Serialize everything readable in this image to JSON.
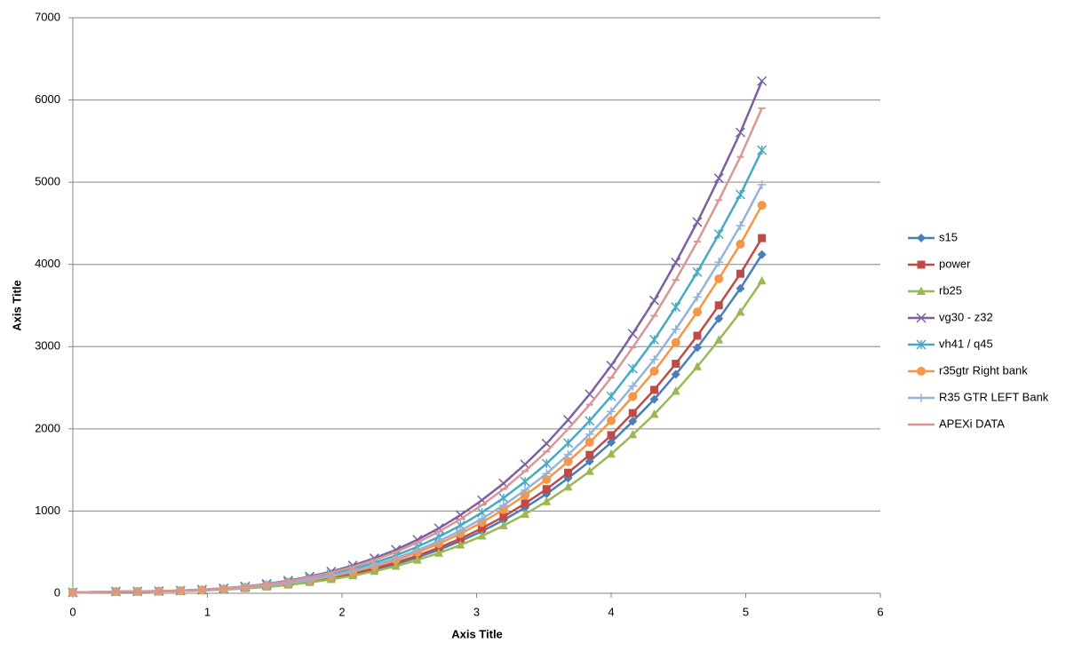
{
  "chart_data": {
    "type": "line",
    "xlabel": "Axis Title",
    "ylabel": "Axis Title",
    "xlim": [
      0,
      6
    ],
    "xticks": [
      0,
      1,
      2,
      3,
      4,
      5,
      6
    ],
    "ylim": [
      0,
      7000
    ],
    "yticks": [
      0,
      1000,
      2000,
      3000,
      4000,
      5000,
      6000,
      7000
    ],
    "grid": true,
    "legend": "right",
    "x": [
      0,
      0.32,
      0.48,
      0.64,
      0.8,
      0.96,
      1.12,
      1.28,
      1.44,
      1.6,
      1.76,
      1.92,
      2.08,
      2.24,
      2.4,
      2.56,
      2.72,
      2.88,
      3.04,
      3.2,
      3.36,
      3.52,
      3.68,
      3.84,
      4.0,
      4.16,
      4.32,
      4.48,
      4.64,
      4.8,
      4.96,
      5.12
    ],
    "series": [
      {
        "name": "s15",
        "color": "#4a7ebb",
        "marker": "diamond",
        "values": [
          10,
          20,
          22,
          24,
          29,
          36,
          47,
          62,
          82,
          108,
          141,
          181,
          230,
          288,
          356,
          437,
          529,
          635,
          755,
          890,
          1042,
          1209,
          1400,
          1605,
          1835,
          2091,
          2359,
          2663,
          2988,
          3340,
          3708,
          4120
        ]
      },
      {
        "name": "power",
        "color": "#be4b48",
        "marker": "square",
        "values": [
          10,
          20,
          22,
          25,
          30,
          37,
          48,
          64,
          85,
          112,
          147,
          189,
          240,
          301,
          373,
          457,
          554,
          665,
          791,
          932,
          1092,
          1267,
          1467,
          1683,
          1923,
          2192,
          2474,
          2792,
          3133,
          3502,
          3887,
          4320
        ]
      },
      {
        "name": "rb25",
        "color": "#98b954",
        "marker": "triangle",
        "values": [
          10,
          20,
          22,
          24,
          28,
          35,
          45,
          59,
          77,
          101,
          132,
          169,
          214,
          267,
          330,
          404,
          489,
          587,
          697,
          822,
          962,
          1116,
          1292,
          1482,
          1693,
          1929,
          2177,
          2457,
          2756,
          3081,
          3420,
          3800
        ]
      },
      {
        "name": "vg30 - z32",
        "color": "#7d60a0",
        "marker": "x",
        "values": [
          10,
          21,
          23,
          27,
          34,
          45,
          61,
          84,
          114,
          154,
          203,
          264,
          338,
          426,
          529,
          651,
          791,
          951,
          1133,
          1337,
          1568,
          1821,
          2110,
          2421,
          2769,
          3157,
          3563,
          4024,
          4515,
          5048,
          5605,
          6230
        ]
      },
      {
        "name": "vh41 / q45",
        "color": "#46aac5",
        "marker": "star",
        "values": [
          10,
          21,
          22,
          26,
          32,
          41,
          55,
          75,
          102,
          135,
          178,
          231,
          295,
          371,
          460,
          566,
          687,
          825,
          982,
          1159,
          1359,
          1577,
          1827,
          2097,
          2397,
          2732,
          3084,
          3482,
          3907,
          4368,
          4850,
          5390
        ]
      },
      {
        "name": "r35gtr Right bank",
        "color": "#f79646",
        "marker": "circle",
        "values": [
          10,
          20,
          22,
          25,
          30,
          39,
          51,
          68,
          91,
          121,
          159,
          205,
          261,
          327,
          405,
          498,
          604,
          725,
          862,
          1017,
          1192,
          1383,
          1602,
          1837,
          2100,
          2394,
          2702,
          3050,
          3422,
          3826,
          4247,
          4720
        ]
      },
      {
        "name": "R35 GTR LEFT Bank",
        "color": "#95b3d7",
        "marker": "plus",
        "values": [
          10,
          20,
          22,
          25,
          31,
          40,
          53,
          71,
          95,
          126,
          166,
          215,
          273,
          343,
          426,
          523,
          635,
          762,
          907,
          1070,
          1254,
          1456,
          1686,
          1934,
          2211,
          2520,
          2844,
          3211,
          3603,
          4028,
          4472,
          4970
        ]
      },
      {
        "name": "APEXi DATA",
        "color": "#d99694",
        "marker": "dash",
        "values": [
          10,
          21,
          22,
          26,
          33,
          44,
          59,
          81,
          109,
          146,
          194,
          251,
          321,
          404,
          502,
          617,
          750,
          901,
          1074,
          1267,
          1486,
          1725,
          1999,
          2294,
          2622,
          2990,
          3375,
          3811,
          4277,
          4781,
          5308,
          5900
        ]
      }
    ]
  }
}
